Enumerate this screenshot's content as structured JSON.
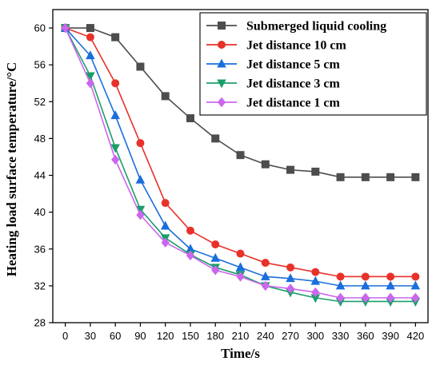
{
  "chart_data": {
    "type": "line",
    "xlabel": "Time/s",
    "ylabel": "Heating load surface temperature/°C",
    "xlim": [
      -15,
      435
    ],
    "ylim": [
      28,
      62
    ],
    "x": [
      0,
      30,
      60,
      90,
      120,
      150,
      180,
      210,
      240,
      270,
      300,
      330,
      360,
      390,
      420
    ],
    "xticks": [
      0,
      30,
      60,
      90,
      120,
      150,
      180,
      210,
      240,
      270,
      300,
      330,
      360,
      390,
      420
    ],
    "yticks": [
      28,
      32,
      36,
      40,
      44,
      48,
      52,
      56,
      60
    ],
    "legend_position": "top-right",
    "grid": false,
    "series": [
      {
        "name": "Submerged liquid cooling",
        "color": "#4d4d4d",
        "marker": "square",
        "values": [
          60,
          60,
          59,
          55.8,
          52.6,
          50.2,
          48,
          46.2,
          45.2,
          44.6,
          44.4,
          43.8,
          43.8,
          43.8,
          43.8
        ]
      },
      {
        "name": "Jet distance 10 cm",
        "color": "#e8312a",
        "marker": "circle",
        "values": [
          60,
          59,
          54,
          47.5,
          41,
          38,
          36.5,
          35.5,
          34.5,
          34,
          33.5,
          33,
          33,
          33,
          33
        ]
      },
      {
        "name": "Jet distance 5 cm",
        "color": "#1a6fdc",
        "marker": "triangle-up",
        "values": [
          60,
          57,
          50.5,
          43.5,
          38.5,
          36,
          35,
          34,
          33,
          32.8,
          32.5,
          32,
          32,
          32,
          32
        ]
      },
      {
        "name": "Jet distance 3 cm",
        "color": "#1b9e6a",
        "marker": "triangle-down",
        "values": [
          60,
          54.8,
          47,
          40.3,
          37.2,
          35.4,
          34,
          33.2,
          32,
          31.3,
          30.7,
          30.3,
          30.3,
          30.3,
          30.3
        ]
      },
      {
        "name": "Jet distance 1 cm",
        "color": "#cc66ee",
        "marker": "diamond",
        "values": [
          60,
          54,
          45.7,
          39.7,
          36.7,
          35.3,
          33.7,
          33,
          32,
          31.7,
          31.3,
          30.7,
          30.7,
          30.7,
          30.7
        ]
      }
    ]
  }
}
